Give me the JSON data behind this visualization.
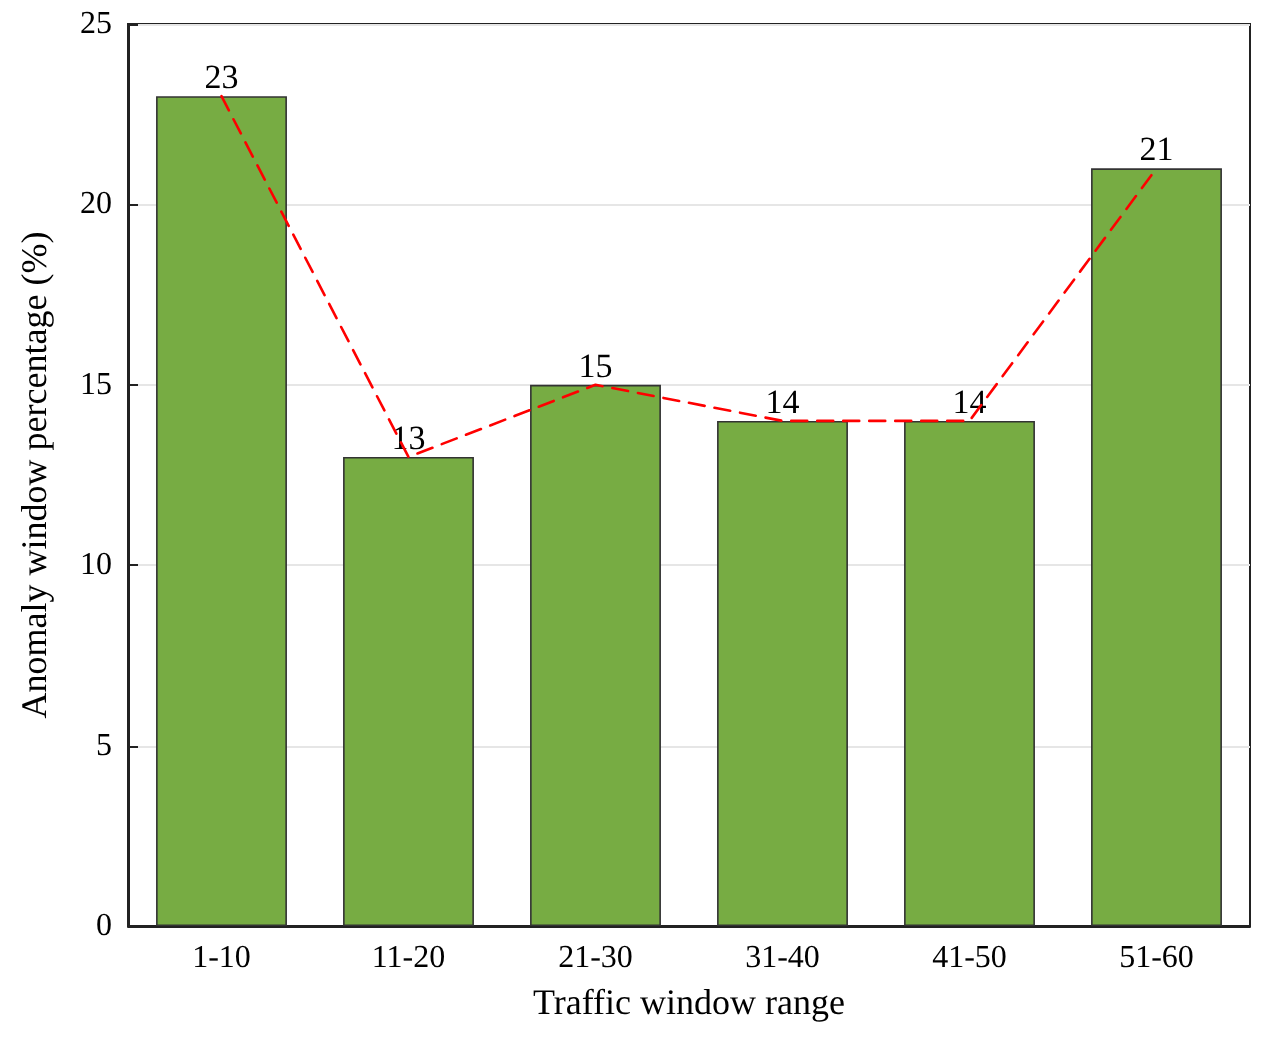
{
  "chart_data": {
    "type": "bar",
    "xlabel": "Traffic window range",
    "ylabel": "Anomaly window percentage (%)",
    "categories": [
      "1-10",
      "11-20",
      "21-30",
      "31-40",
      "41-50",
      "51-60"
    ],
    "series": [
      {
        "color": "#77ac43",
        "values": [
          23,
          13,
          15,
          14,
          14,
          21
        ],
        "value_labels": [
          "23",
          "13",
          "15",
          "14",
          "14",
          "21"
        ]
      },
      {
        "type": "line",
        "color": "#ff0000",
        "values": [
          23,
          13,
          15,
          14,
          14,
          21
        ]
      }
    ],
    "ylim": [
      0,
      25
    ],
    "yticks": [
      0,
      5,
      10,
      15,
      20,
      25
    ],
    "grid": "y",
    "line_style": "dashed",
    "marker": "none"
  }
}
